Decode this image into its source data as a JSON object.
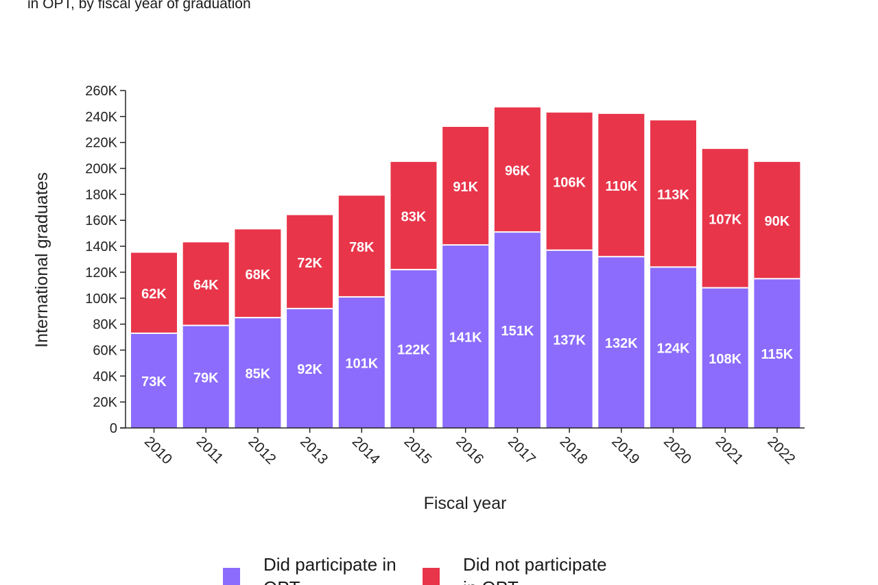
{
  "subtitle": "in OPT, by fiscal year of graduation",
  "colors": {
    "participated": "#8b6cfc",
    "not_participated": "#e8354a",
    "axis": "#222222",
    "label_text": "#ffffff"
  },
  "chart_data": {
    "type": "bar",
    "stacked": true,
    "title": "",
    "xlabel": "Fiscal year",
    "ylabel": "International graduates",
    "ylim": [
      0,
      260000
    ],
    "yticks": [
      {
        "value": 0,
        "label": "0"
      },
      {
        "value": 20000,
        "label": "20K"
      },
      {
        "value": 40000,
        "label": "40K"
      },
      {
        "value": 60000,
        "label": "60K"
      },
      {
        "value": 80000,
        "label": "80K"
      },
      {
        "value": 100000,
        "label": "100K"
      },
      {
        "value": 120000,
        "label": "120K"
      },
      {
        "value": 140000,
        "label": "140K"
      },
      {
        "value": 160000,
        "label": "160K"
      },
      {
        "value": 180000,
        "label": "180K"
      },
      {
        "value": 200000,
        "label": "200K"
      },
      {
        "value": 220000,
        "label": "220K"
      },
      {
        "value": 240000,
        "label": "240K"
      },
      {
        "value": 260000,
        "label": "260K"
      }
    ],
    "categories": [
      "2010",
      "2011",
      "2012",
      "2013",
      "2014",
      "2015",
      "2016",
      "2017",
      "2018",
      "2019",
      "2020",
      "2021",
      "2022"
    ],
    "series": [
      {
        "name": "Did participate in OPT",
        "color_key": "participated",
        "values": [
          73000,
          79000,
          85000,
          92000,
          101000,
          122000,
          141000,
          151000,
          137000,
          132000,
          124000,
          108000,
          115000
        ],
        "labels": [
          "73K",
          "79K",
          "85K",
          "92K",
          "101K",
          "122K",
          "141K",
          "151K",
          "137K",
          "132K",
          "124K",
          "108K",
          "115K"
        ]
      },
      {
        "name": "Did not participate in OPT",
        "color_key": "not_participated",
        "values": [
          62000,
          64000,
          68000,
          72000,
          78000,
          83000,
          91000,
          96000,
          106000,
          110000,
          113000,
          107000,
          90000
        ],
        "labels": [
          "62K",
          "64K",
          "68K",
          "72K",
          "78K",
          "83K",
          "91K",
          "96K",
          "106K",
          "110K",
          "113K",
          "107K",
          "90K"
        ]
      }
    ],
    "legend": {
      "placement": "bottom",
      "items": [
        {
          "line1": "Did participate in",
          "line2": "OPT",
          "color_key": "participated"
        },
        {
          "line1": "Did not participate",
          "line2": "in OPT",
          "color_key": "not_participated"
        }
      ]
    }
  }
}
